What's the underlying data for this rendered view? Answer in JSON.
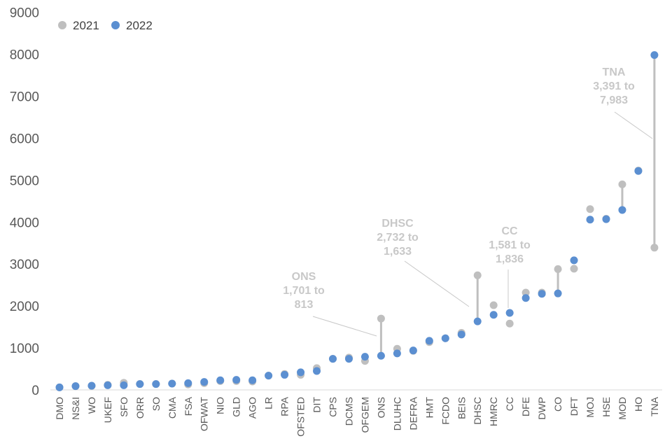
{
  "chart_data": {
    "type": "scatter",
    "categories": [
      "DMO",
      "NS&I",
      "WO",
      "UKEF",
      "SFO",
      "ORR",
      "SO",
      "CMA",
      "FSA",
      "OFWAT",
      "NIO",
      "GLD",
      "AGO",
      "LR",
      "RPA",
      "OFSTED",
      "DIT",
      "CPS",
      "DCMS",
      "OFGEM",
      "ONS",
      "DLUHC",
      "DEFRA",
      "HMT",
      "FCDO",
      "BEIS",
      "DHSC",
      "HMRC",
      "CC",
      "DFE",
      "DWP",
      "CO",
      "DFT",
      "MOJ",
      "HSE",
      "MOD",
      "HO",
      "TNA"
    ],
    "series": [
      {
        "name": "2021",
        "color": "#bfbfbf",
        "values": [
          60,
          90,
          95,
          120,
          170,
          140,
          140,
          150,
          130,
          160,
          210,
          210,
          200,
          340,
          380,
          360,
          520,
          740,
          770,
          690,
          1701,
          980,
          930,
          1140,
          1230,
          1360,
          2732,
          2020,
          1581,
          2320,
          2320,
          2880,
          2890,
          4310,
          4080,
          4900,
          5230,
          3391
        ]
      },
      {
        "name": "2022",
        "color": "#5b8fd1",
        "values": [
          60,
          90,
          100,
          110,
          110,
          140,
          140,
          150,
          160,
          190,
          230,
          240,
          230,
          340,
          360,
          420,
          450,
          740,
          740,
          790,
          813,
          870,
          940,
          1170,
          1230,
          1320,
          1633,
          1790,
          1836,
          2190,
          2290,
          2300,
          3090,
          4060,
          4070,
          4290,
          5220,
          7983
        ]
      }
    ],
    "ylim": [
      0,
      9000
    ],
    "yticks": [
      0,
      1000,
      2000,
      3000,
      4000,
      5000,
      6000,
      7000,
      8000,
      9000
    ],
    "grid": false,
    "legend": "top-left",
    "annotations": [
      {
        "category": "ONS",
        "lines": [
          "ONS",
          "1,701 to",
          "813"
        ]
      },
      {
        "category": "DHSC",
        "lines": [
          "DHSC",
          "2,732 to",
          "1,633"
        ]
      },
      {
        "category": "CC",
        "lines": [
          "CC",
          "1,581 to",
          "1,836"
        ]
      },
      {
        "category": "TNA",
        "lines": [
          "TNA",
          "3,391 to",
          "7,983"
        ]
      }
    ],
    "connectors_for": [
      "ONS",
      "DHSC",
      "CO",
      "MOD",
      "TNA"
    ]
  }
}
